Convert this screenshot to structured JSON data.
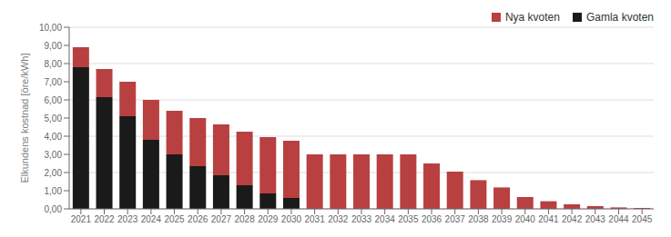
{
  "chart_data": {
    "type": "bar",
    "stacked": true,
    "categories": [
      "2021",
      "2022",
      "2023",
      "2024",
      "2025",
      "2026",
      "2027",
      "2028",
      "2029",
      "2030",
      "2031",
      "2032",
      "2033",
      "2034",
      "2035",
      "2036",
      "2037",
      "2038",
      "2039",
      "2040",
      "2041",
      "2042",
      "2043",
      "2044",
      "2045"
    ],
    "series": [
      {
        "name": "Gamla kvoten",
        "color": "#1a1a1a",
        "values": [
          7.8,
          6.15,
          5.1,
          3.8,
          3.0,
          2.35,
          1.85,
          1.3,
          0.85,
          0.6,
          0.0,
          0.0,
          0.0,
          0.0,
          0.0,
          0.0,
          0.0,
          0.0,
          0.0,
          0.0,
          0.0,
          0.0,
          0.0,
          0.0,
          0.0
        ]
      },
      {
        "name": "Nya kvoten",
        "color": "#b84040",
        "values": [
          1.1,
          1.55,
          1.9,
          2.2,
          2.4,
          2.65,
          2.8,
          2.95,
          3.1,
          3.15,
          3.0,
          3.0,
          3.0,
          3.0,
          3.0,
          2.5,
          2.05,
          1.58,
          1.18,
          0.65,
          0.42,
          0.25,
          0.15,
          0.08,
          0.05
        ]
      }
    ],
    "ylabel": "Elkundens kostnad [öre/kWh]",
    "ylim": [
      0,
      10
    ],
    "yticks": [
      {
        "value": 0,
        "label": "0,00"
      },
      {
        "value": 1,
        "label": "1,00"
      },
      {
        "value": 2,
        "label": "2,00"
      },
      {
        "value": 3,
        "label": "3,00"
      },
      {
        "value": 4,
        "label": "4,00"
      },
      {
        "value": 5,
        "label": "5,00"
      },
      {
        "value": 6,
        "label": "6,00"
      },
      {
        "value": 7,
        "label": "7,00"
      },
      {
        "value": 8,
        "label": "8,00"
      },
      {
        "value": 9,
        "label": "9,00"
      },
      {
        "value": 10,
        "label": "10,00"
      }
    ],
    "grid": true,
    "legend": "upper right"
  }
}
